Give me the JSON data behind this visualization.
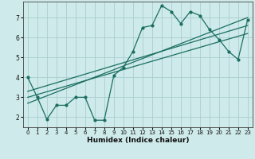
{
  "xlabel": "Humidex (Indice chaleur)",
  "bg_color": "#ceeaea",
  "grid_color": "#aacece",
  "line_color": "#1a6e60",
  "xlim": [
    -0.5,
    23.5
  ],
  "ylim": [
    1.5,
    7.8
  ],
  "yticks": [
    2,
    3,
    4,
    5,
    6,
    7
  ],
  "xticks": [
    0,
    1,
    2,
    3,
    4,
    5,
    6,
    7,
    8,
    9,
    10,
    11,
    12,
    13,
    14,
    15,
    16,
    17,
    18,
    19,
    20,
    21,
    22,
    23
  ],
  "main_x": [
    0,
    1,
    2,
    3,
    4,
    5,
    6,
    7,
    8,
    9,
    10,
    11,
    12,
    13,
    14,
    15,
    16,
    17,
    18,
    19,
    20,
    21,
    22,
    23
  ],
  "main_y": [
    4.0,
    3.0,
    1.9,
    2.6,
    2.6,
    3.0,
    3.0,
    1.85,
    1.85,
    4.1,
    4.5,
    5.3,
    6.5,
    6.6,
    7.6,
    7.3,
    6.7,
    7.3,
    7.1,
    6.4,
    5.9,
    5.3,
    4.9,
    6.9
  ],
  "trend1_x": [
    0,
    23
  ],
  "trend1_y": [
    3.3,
    6.6
  ],
  "trend2_x": [
    0,
    23
  ],
  "trend2_y": [
    3.0,
    6.2
  ],
  "trend3_x": [
    0,
    23
  ],
  "trend3_y": [
    2.7,
    7.0
  ]
}
